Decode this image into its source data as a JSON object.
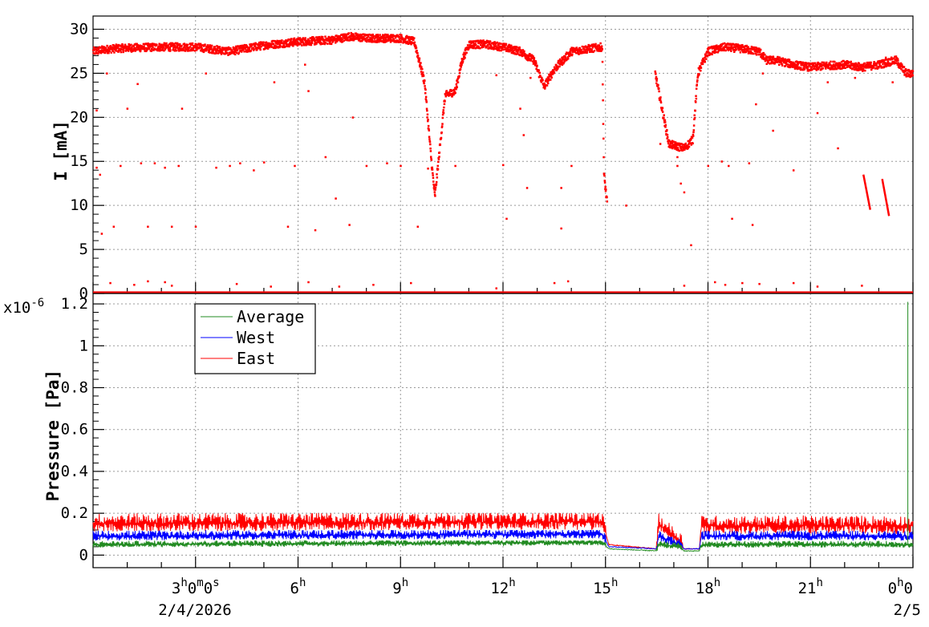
{
  "chart_data": [
    {
      "type": "scatter",
      "ylabel": "I [mA]",
      "ylim": [
        0,
        31.5
      ],
      "yticks": [
        0,
        5,
        10,
        15,
        20,
        25,
        30
      ],
      "xlim_hours": [
        0,
        24
      ],
      "grid": true,
      "series": [
        {
          "color": "#ff0000",
          "main_trace": [
            [
              0.0,
              27.5
            ],
            [
              0.5,
              27.8
            ],
            [
              1.0,
              27.9
            ],
            [
              2.0,
              28.0
            ],
            [
              3.0,
              28.0
            ],
            [
              4.0,
              27.5
            ],
            [
              5.0,
              28.2
            ],
            [
              6.0,
              28.6
            ],
            [
              7.0,
              28.8
            ],
            [
              7.5,
              29.2
            ],
            [
              8.0,
              29.0
            ],
            [
              9.0,
              29.0
            ],
            [
              9.4,
              28.6
            ],
            [
              9.7,
              24.0
            ],
            [
              9.9,
              15.0
            ],
            [
              10.0,
              11.0
            ],
            [
              10.3,
              22.5
            ],
            [
              10.6,
              23.0
            ],
            [
              10.8,
              26.5
            ],
            [
              11.0,
              28.3
            ],
            [
              11.5,
              28.3
            ],
            [
              12.0,
              28.0
            ],
            [
              12.5,
              27.5
            ],
            [
              12.9,
              26.5
            ],
            [
              13.2,
              23.5
            ],
            [
              13.5,
              25.5
            ],
            [
              14.0,
              27.5
            ],
            [
              14.5,
              27.8
            ],
            [
              14.9,
              28.0
            ],
            [
              14.95,
              13.5
            ],
            [
              15.05,
              10.0
            ],
            [
              16.45,
              25.0
            ],
            [
              16.7,
              20.0
            ],
            [
              16.85,
              17.0
            ],
            [
              17.3,
              16.5
            ],
            [
              17.55,
              17.5
            ],
            [
              17.7,
              25.0
            ],
            [
              18.0,
              27.5
            ],
            [
              18.5,
              28.0
            ],
            [
              19.0,
              27.8
            ],
            [
              19.5,
              27.5
            ],
            [
              19.7,
              26.5
            ],
            [
              20.0,
              26.5
            ],
            [
              20.5,
              26.0
            ],
            [
              21.0,
              25.7
            ],
            [
              21.5,
              25.9
            ],
            [
              22.0,
              26.0
            ],
            [
              22.5,
              25.7
            ],
            [
              23.0,
              26.0
            ],
            [
              23.5,
              26.5
            ],
            [
              23.8,
              25.0
            ],
            [
              24.0,
              25.0
            ]
          ],
          "stray_points": [
            [
              0.1,
              20.8
            ],
            [
              0.1,
              14.3
            ],
            [
              0.2,
              13.5
            ],
            [
              0.25,
              6.8
            ],
            [
              0.4,
              25.0
            ],
            [
              0.6,
              7.6
            ],
            [
              0.8,
              14.5
            ],
            [
              1.0,
              21.0
            ],
            [
              1.3,
              23.8
            ],
            [
              1.4,
              14.8
            ],
            [
              1.6,
              7.6
            ],
            [
              1.8,
              14.8
            ],
            [
              2.1,
              14.3
            ],
            [
              2.3,
              7.6
            ],
            [
              2.5,
              14.5
            ],
            [
              2.6,
              21.0
            ],
            [
              3.0,
              7.6
            ],
            [
              3.3,
              25.0
            ],
            [
              3.6,
              14.3
            ],
            [
              4.0,
              14.5
            ],
            [
              4.3,
              14.8
            ],
            [
              4.7,
              14.0
            ],
            [
              5.0,
              14.9
            ],
            [
              5.3,
              24.0
            ],
            [
              5.7,
              7.6
            ],
            [
              5.9,
              14.5
            ],
            [
              6.2,
              26.0
            ],
            [
              6.3,
              23.0
            ],
            [
              6.5,
              7.2
            ],
            [
              6.8,
              15.5
            ],
            [
              7.1,
              10.8
            ],
            [
              7.5,
              7.8
            ],
            [
              7.6,
              20.0
            ],
            [
              8.0,
              14.5
            ],
            [
              8.6,
              14.8
            ],
            [
              9.0,
              14.5
            ],
            [
              9.5,
              7.6
            ],
            [
              9.8,
              14.2
            ],
            [
              10.6,
              14.5
            ],
            [
              11.8,
              24.8
            ],
            [
              12.0,
              14.6
            ],
            [
              12.1,
              8.5
            ],
            [
              12.5,
              21.0
            ],
            [
              12.6,
              18.0
            ],
            [
              12.7,
              12.0
            ],
            [
              12.8,
              24.5
            ],
            [
              13.7,
              12.0
            ],
            [
              13.7,
              7.4
            ],
            [
              14.0,
              14.5
            ],
            [
              15.6,
              10.0
            ],
            [
              16.6,
              17.0
            ],
            [
              17.1,
              15.5
            ],
            [
              17.1,
              14.5
            ],
            [
              17.2,
              12.5
            ],
            [
              17.3,
              11.5
            ],
            [
              17.5,
              5.5
            ],
            [
              18.0,
              14.5
            ],
            [
              18.4,
              15.0
            ],
            [
              18.6,
              14.5
            ],
            [
              18.7,
              8.5
            ],
            [
              19.2,
              14.8
            ],
            [
              19.3,
              7.8
            ],
            [
              19.4,
              21.5
            ],
            [
              19.6,
              25.0
            ],
            [
              19.9,
              18.5
            ],
            [
              20.5,
              14.0
            ],
            [
              21.2,
              20.5
            ],
            [
              21.5,
              24.0
            ],
            [
              21.8,
              16.5
            ],
            [
              22.3,
              24.5
            ],
            [
              23.2,
              26.8
            ],
            [
              23.4,
              24.0
            ],
            [
              0.5,
              1.2
            ],
            [
              1.2,
              1.0
            ],
            [
              1.6,
              1.4
            ],
            [
              2.1,
              1.3
            ],
            [
              2.3,
              0.9
            ],
            [
              4.2,
              1.1
            ],
            [
              5.2,
              0.8
            ],
            [
              6.3,
              1.3
            ],
            [
              7.2,
              0.8
            ],
            [
              8.2,
              1.0
            ],
            [
              9.3,
              1.2
            ],
            [
              11.8,
              0.6
            ],
            [
              13.5,
              1.2
            ],
            [
              13.9,
              1.4
            ],
            [
              17.3,
              0.9
            ],
            [
              18.2,
              1.3
            ],
            [
              18.5,
              1.0
            ],
            [
              19.0,
              1.2
            ],
            [
              19.5,
              1.1
            ],
            [
              20.5,
              1.2
            ],
            [
              21.2,
              0.8
            ],
            [
              22.5,
              0.9
            ]
          ],
          "late_streaks": [
            [
              [
                22.55,
                13.5
              ],
              [
                22.75,
                9.5
              ]
            ],
            [
              [
                23.1,
                13.0
              ],
              [
                23.3,
                8.8
              ]
            ]
          ]
        }
      ]
    },
    {
      "type": "line",
      "ylabel": "Pressure [Pa]",
      "y_multiplier_label": "x10",
      "y_multiplier_exp": "-6",
      "ylim": [
        -0.06,
        1.25
      ],
      "yticks": [
        0,
        0.2,
        0.4,
        0.6,
        0.8,
        1,
        1.2
      ],
      "ytick_labels": [
        "0",
        "0.2",
        "0.4",
        "0.6",
        "0.8",
        "1",
        "1.2"
      ],
      "xlim_hours": [
        0,
        24
      ],
      "grid": true,
      "legend_position": "top-left",
      "series": [
        {
          "name": "Average",
          "color": "#228b22",
          "low": 0.03,
          "high": 0.07,
          "knots": [
            [
              0,
              0.05
            ],
            [
              14.9,
              0.06
            ],
            [
              15.1,
              0.03
            ],
            [
              16.5,
              0.02
            ],
            [
              16.55,
              0.05
            ],
            [
              17.2,
              0.04
            ],
            [
              17.3,
              0.02
            ],
            [
              17.75,
              0.02
            ],
            [
              17.8,
              0.05
            ],
            [
              24,
              0.05
            ]
          ],
          "spike": [
            23.85,
            1.21
          ]
        },
        {
          "name": "West",
          "color": "#0000ff",
          "low": 0.06,
          "high": 0.12,
          "knots": [
            [
              0,
              0.09
            ],
            [
              14.9,
              0.1
            ],
            [
              15.1,
              0.04
            ],
            [
              16.5,
              0.03
            ],
            [
              16.55,
              0.09
            ],
            [
              17.2,
              0.05
            ],
            [
              17.3,
              0.03
            ],
            [
              17.75,
              0.03
            ],
            [
              17.8,
              0.09
            ],
            [
              24,
              0.09
            ]
          ]
        },
        {
          "name": "East",
          "color": "#ff0000",
          "low": 0.09,
          "high": 0.2,
          "knots": [
            [
              0,
              0.15
            ],
            [
              14.9,
              0.16
            ],
            [
              15.1,
              0.05
            ],
            [
              16.5,
              0.03
            ],
            [
              16.55,
              0.15
            ],
            [
              17.2,
              0.06
            ],
            [
              17.3,
              0.03
            ],
            [
              17.75,
              0.03
            ],
            [
              17.8,
              0.14
            ],
            [
              24,
              0.14
            ]
          ]
        }
      ]
    }
  ],
  "xaxis": {
    "ticks": [
      {
        "hour": 3,
        "label": "3",
        "sup": "h",
        "extra": "0",
        "extra_sup": "m",
        "extra2": "0",
        "extra2_sup": "s"
      },
      {
        "hour": 6,
        "label": "6",
        "sup": "h"
      },
      {
        "hour": 9,
        "label": "9",
        "sup": "h"
      },
      {
        "hour": 12,
        "label": "12",
        "sup": "h"
      },
      {
        "hour": 15,
        "label": "15",
        "sup": "h"
      },
      {
        "hour": 18,
        "label": "18",
        "sup": "h"
      },
      {
        "hour": 21,
        "label": "21",
        "sup": "h"
      },
      {
        "hour": 24,
        "label": "0",
        "sup": "h",
        "extra": "0"
      }
    ],
    "date_left": "2/4/2026",
    "date_right": "2/5"
  }
}
